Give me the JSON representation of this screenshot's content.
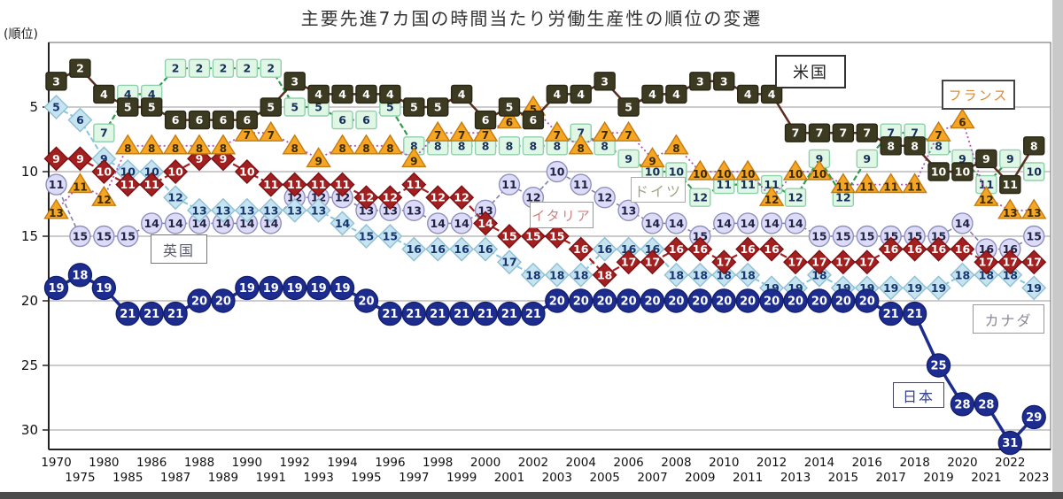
{
  "title": "主要先進7カ国の時間当たり労働生産性の順位の変遷",
  "chart_data": {
    "type": "line",
    "title": "主要先進7カ国の時間当たり労働生産性の順位の変遷",
    "x": [
      1970,
      1975,
      1980,
      1985,
      1986,
      1987,
      1988,
      1989,
      1990,
      1991,
      1992,
      1993,
      1994,
      1995,
      1996,
      1997,
      1998,
      1999,
      2000,
      2001,
      2002,
      2003,
      2004,
      2005,
      2006,
      2007,
      2008,
      2009,
      2010,
      2011,
      2012,
      2013,
      2014,
      2015,
      2016,
      2017,
      2018,
      2019,
      2020,
      2021,
      2022,
      2023
    ],
    "y_axis": {
      "label": "(順位)",
      "ticks": [
        5,
        10,
        15,
        20,
        25,
        30
      ],
      "inverted": true,
      "range": [
        1,
        32
      ]
    },
    "legend_position": "inline-boxes",
    "grid": "horizontal",
    "series": [
      {
        "id": "uk",
        "label": "英国",
        "marker": "circle",
        "line_color": "#8080a8",
        "dash": "5,3",
        "line_width": 1.6,
        "fill": "#dcdcf8",
        "stroke": "#9090c0",
        "text_color": "#222244",
        "values": [
          11,
          15,
          15,
          15,
          14,
          14,
          14,
          14,
          14,
          14,
          12,
          12,
          12,
          13,
          13,
          13,
          14,
          14,
          13,
          11,
          12,
          10,
          11,
          12,
          13,
          14,
          14,
          15,
          14,
          14,
          14,
          14,
          15,
          15,
          15,
          15,
          15,
          15,
          14,
          16,
          16,
          15
        ]
      },
      {
        "id": "canada",
        "label": "カナダ",
        "marker": "diamond",
        "line_color": "#85c6de",
        "dash": "6,3",
        "line_width": 2,
        "fill": "#c5e3f0",
        "stroke": "#8fc0d4",
        "text_color": "#15356e",
        "values": [
          5,
          6,
          9,
          10,
          10,
          12,
          13,
          13,
          13,
          13,
          13,
          13,
          14,
          15,
          15,
          16,
          16,
          16,
          16,
          17,
          18,
          18,
          18,
          16,
          16,
          16,
          18,
          18,
          18,
          18,
          19,
          19,
          18,
          19,
          19,
          19,
          19,
          19,
          18,
          18,
          18,
          19
        ]
      },
      {
        "id": "italy",
        "label": "イタリア",
        "marker": "diamond",
        "line_color": "#a32020",
        "dash": "8,4",
        "line_width": 2.2,
        "fill": "#a32020",
        "stroke": "#7c1014",
        "text_color": "#ffffff",
        "values": [
          9,
          9,
          10,
          11,
          11,
          10,
          9,
          9,
          10,
          11,
          11,
          11,
          11,
          12,
          12,
          11,
          12,
          12,
          14,
          15,
          15,
          15,
          16,
          18,
          17,
          17,
          16,
          16,
          17,
          16,
          16,
          17,
          17,
          17,
          17,
          16,
          16,
          16,
          16,
          17,
          17,
          17
        ]
      },
      {
        "id": "germany",
        "label": "ドイツ",
        "marker": "square",
        "line_color": "#2e9e4a",
        "dash": "6,3",
        "line_width": 2.2,
        "fill": "#e0f7e6",
        "stroke": "#8fd0ac",
        "text_color": "#17305a",
        "values": [
          null,
          null,
          7,
          4,
          4,
          2,
          2,
          2,
          2,
          2,
          5,
          5,
          6,
          6,
          5,
          8,
          8,
          8,
          8,
          8,
          8,
          8,
          7,
          8,
          9,
          10,
          10,
          12,
          11,
          11,
          11,
          12,
          9,
          12,
          9,
          7,
          7,
          8,
          9,
          11,
          9,
          10
        ]
      },
      {
        "id": "france",
        "label": "フランス",
        "marker": "triangle",
        "line_color": "#b055b0",
        "dash": "2,3",
        "line_width": 1.8,
        "fill": "#f6a623",
        "stroke": "#c27c12",
        "text_color": "#3a2a00",
        "values": [
          13,
          11,
          12,
          8,
          8,
          8,
          8,
          8,
          7,
          7,
          8,
          9,
          8,
          8,
          8,
          9,
          7,
          7,
          7,
          6,
          5,
          7,
          8,
          7,
          7,
          9,
          8,
          10,
          10,
          10,
          12,
          10,
          10,
          11,
          11,
          11,
          11,
          7,
          6,
          12,
          13,
          13
        ]
      },
      {
        "id": "usa",
        "label": "米国",
        "marker": "square",
        "line_color": "#5b2d20",
        "dash": "",
        "line_width": 2.5,
        "fill": "#3c3a20",
        "stroke": "#282614",
        "text_color": "#ffffff",
        "values": [
          3,
          2,
          4,
          5,
          5,
          6,
          6,
          6,
          6,
          5,
          3,
          4,
          4,
          4,
          4,
          5,
          5,
          4,
          6,
          5,
          6,
          4,
          4,
          3,
          5,
          4,
          4,
          3,
          3,
          4,
          4,
          7,
          7,
          7,
          7,
          8,
          8,
          10,
          10,
          9,
          11,
          8
        ]
      },
      {
        "id": "japan",
        "label": "日本",
        "marker": "circle-large",
        "line_color": "#1d2d8f",
        "dash": "",
        "line_width": 3.5,
        "fill": "#1d2d8f",
        "stroke": "#141f6e",
        "text_color": "#ffffff",
        "values": [
          19,
          18,
          19,
          21,
          21,
          21,
          20,
          20,
          19,
          19,
          19,
          19,
          19,
          20,
          21,
          21,
          21,
          21,
          21,
          21,
          21,
          20,
          20,
          20,
          20,
          20,
          20,
          20,
          20,
          20,
          20,
          20,
          20,
          20,
          20,
          21,
          21,
          25,
          28,
          28,
          31,
          29
        ]
      }
    ]
  }
}
